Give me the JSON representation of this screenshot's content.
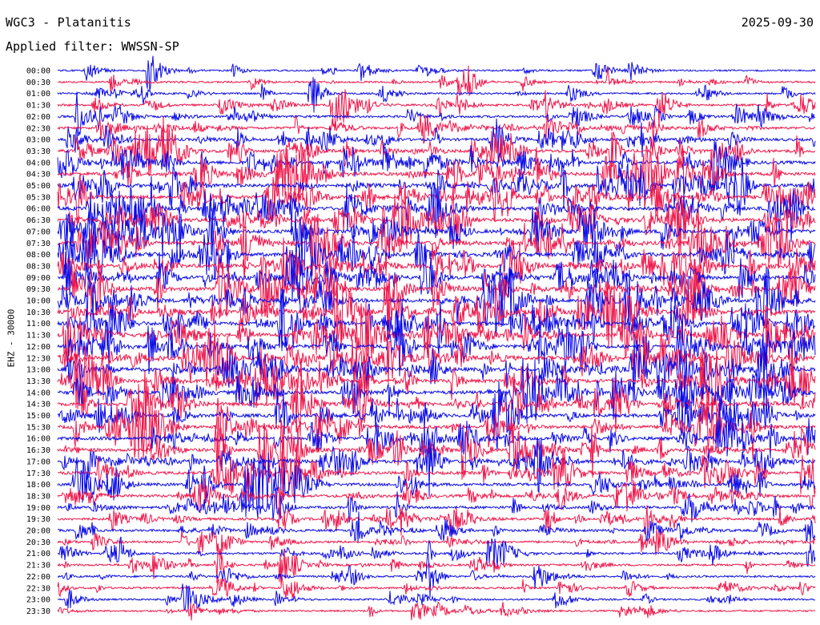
{
  "header": {
    "title": "WGC3 - Platanitis",
    "date": "2025-09-30",
    "filter": "Applied filter: WWSSN-SP",
    "channel_label": "EHZ - 30000"
  },
  "colors": {
    "trace_a": "#0a0ae6",
    "trace_b": "#f0164a",
    "background": "#ffffff",
    "text": "#000000"
  },
  "chart_data": {
    "type": "line",
    "rows": [
      "00:00",
      "00:30",
      "01:00",
      "01:30",
      "02:00",
      "02:30",
      "03:00",
      "03:30",
      "04:00",
      "04:30",
      "05:00",
      "05:30",
      "06:00",
      "06:30",
      "07:00",
      "07:30",
      "08:00",
      "08:30",
      "09:00",
      "09:30",
      "10:00",
      "10:30",
      "11:00",
      "11:30",
      "12:00",
      "12:30",
      "13:00",
      "13:30",
      "14:00",
      "14:30",
      "15:00",
      "15:30",
      "16:00",
      "16:30",
      "17:00",
      "17:30",
      "18:00",
      "18:30",
      "19:00",
      "19:30",
      "20:00",
      "20:30",
      "21:00",
      "21:30",
      "22:00",
      "22:30",
      "23:00",
      "23:30"
    ],
    "row_colors": [
      "trace_a",
      "trace_b"
    ],
    "activity": [
      0.25,
      0.3,
      0.35,
      0.4,
      0.5,
      0.55,
      0.65,
      0.75,
      0.85,
      0.9,
      0.95,
      0.95,
      1.0,
      0.95,
      1.0,
      1.0,
      1.0,
      1.0,
      1.0,
      1.0,
      1.0,
      1.0,
      1.0,
      1.0,
      1.0,
      1.0,
      1.0,
      0.95,
      0.95,
      0.9,
      0.9,
      0.85,
      0.85,
      0.8,
      0.8,
      0.75,
      0.7,
      0.65,
      0.6,
      0.55,
      0.5,
      0.45,
      0.45,
      0.4,
      0.35,
      0.35,
      0.3,
      0.3
    ],
    "minutes_per_row": 30,
    "grid": false
  }
}
